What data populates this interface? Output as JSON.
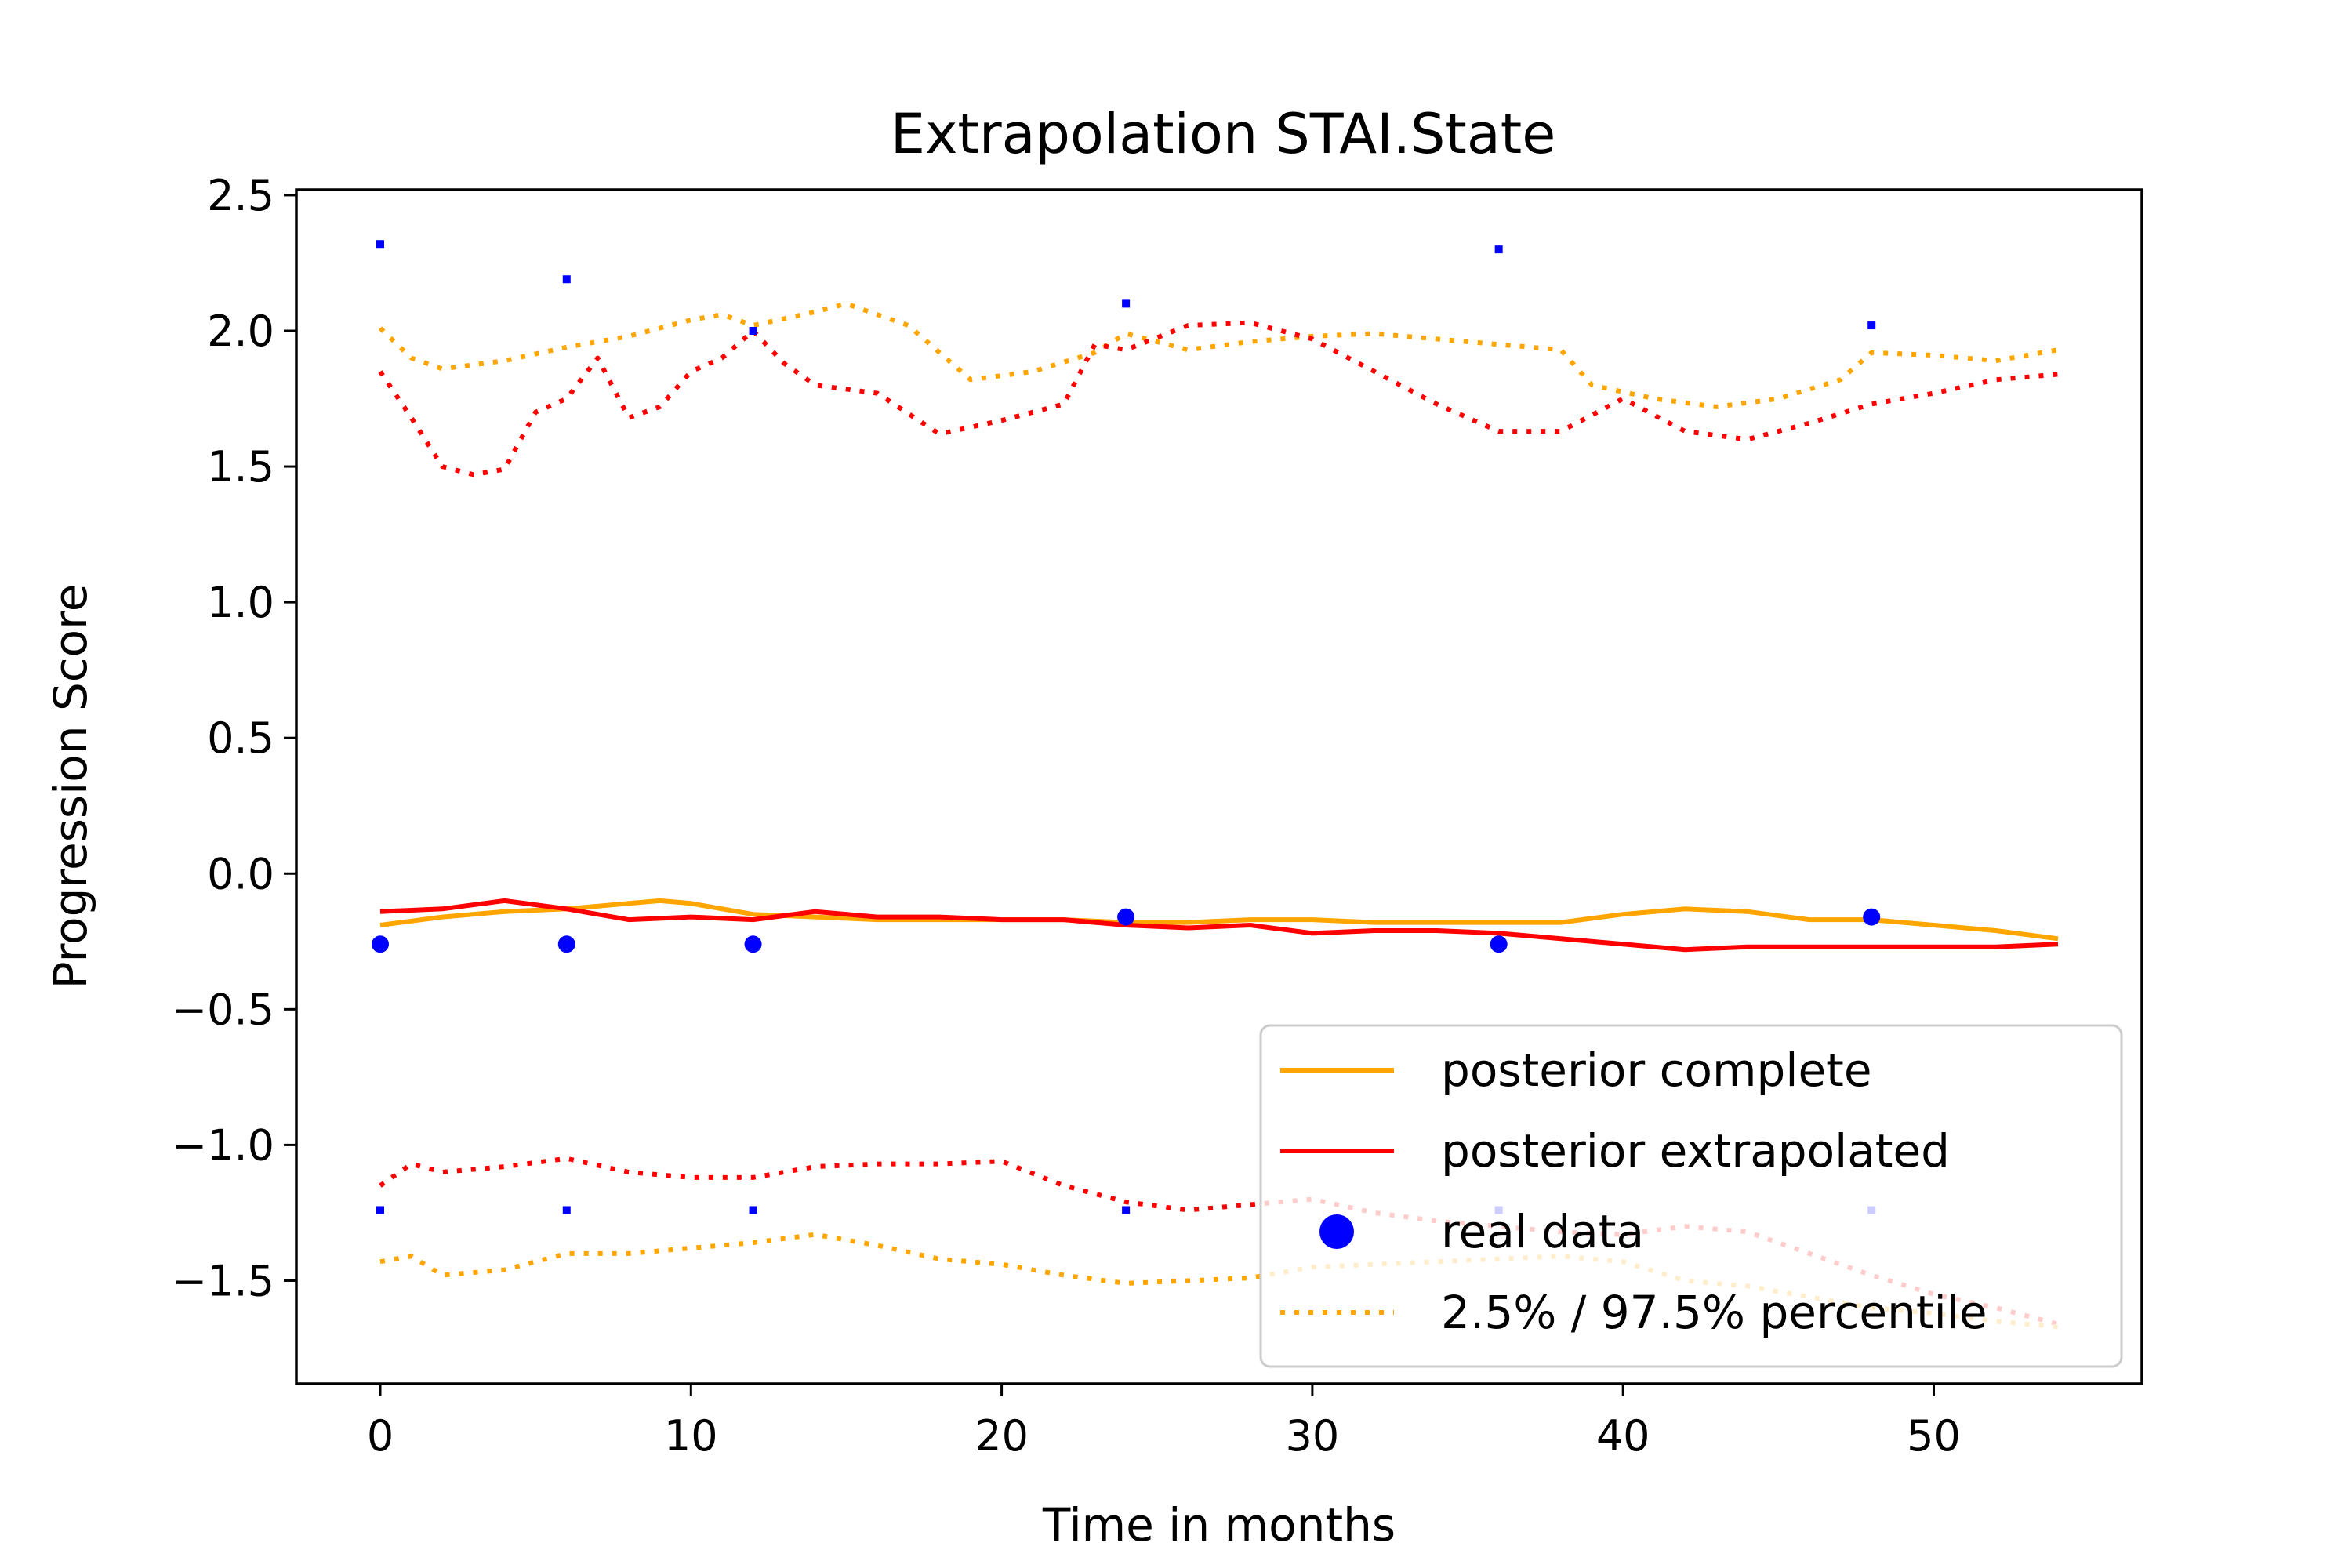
{
  "chart_data": {
    "type": "line",
    "title": "Extrapolation STAI.State",
    "xlabel": "Time in months",
    "ylabel": "Progression Score",
    "xlim": [
      -2.7,
      56.7
    ],
    "ylim": [
      -1.88,
      2.52
    ],
    "xticks": [
      0,
      10,
      20,
      30,
      40,
      50
    ],
    "yticks": [
      -1.5,
      -1.0,
      -0.5,
      0.0,
      0.5,
      1.0,
      1.5,
      2.0,
      2.5
    ],
    "ytick_labels": [
      "−1.5",
      "−1.0",
      "−0.5",
      "0.0",
      "0.5",
      "1.0",
      "1.5",
      "2.0",
      "2.5"
    ],
    "grid": false,
    "legend_position": "lower-right",
    "series": [
      {
        "name": "posterior complete",
        "style": "solid",
        "color": "#ffa500",
        "x": [
          0,
          2,
          4,
          6,
          8,
          9,
          10,
          12,
          14,
          16,
          18,
          20,
          22,
          24,
          26,
          28,
          30,
          32,
          34,
          36,
          38,
          40,
          42,
          44,
          46,
          48,
          50,
          52,
          54
        ],
        "y": [
          -0.19,
          -0.16,
          -0.14,
          -0.13,
          -0.11,
          -0.1,
          -0.11,
          -0.15,
          -0.16,
          -0.17,
          -0.17,
          -0.17,
          -0.17,
          -0.18,
          -0.18,
          -0.17,
          -0.17,
          -0.18,
          -0.18,
          -0.18,
          -0.18,
          -0.15,
          -0.13,
          -0.14,
          -0.17,
          -0.17,
          -0.19,
          -0.21,
          -0.24
        ]
      },
      {
        "name": "posterior extrapolated",
        "style": "solid",
        "color": "#ff0000",
        "x": [
          0,
          2,
          4,
          6,
          8,
          10,
          12,
          14,
          16,
          18,
          20,
          22,
          24,
          26,
          28,
          30,
          32,
          34,
          36,
          38,
          40,
          42,
          44,
          46,
          48,
          50,
          52,
          54
        ],
        "y": [
          -0.14,
          -0.13,
          -0.1,
          -0.13,
          -0.17,
          -0.16,
          -0.17,
          -0.14,
          -0.16,
          -0.16,
          -0.17,
          -0.17,
          -0.19,
          -0.2,
          -0.19,
          -0.22,
          -0.21,
          -0.21,
          -0.22,
          -0.24,
          -0.26,
          -0.28,
          -0.27,
          -0.27,
          -0.27,
          -0.27,
          -0.27,
          -0.26
        ]
      },
      {
        "name": "real data",
        "style": "marker",
        "color": "#0000ff",
        "x": [
          0,
          6,
          12,
          24,
          36,
          48
        ],
        "y": [
          -0.26,
          -0.26,
          -0.26,
          -0.16,
          -0.26,
          -0.16
        ]
      },
      {
        "name": "2.5% / 97.5% percentile",
        "style": "dotted",
        "color": "#ffa500",
        "x": [
          0,
          1,
          2,
          4,
          6,
          8,
          10,
          11,
          12,
          14,
          15,
          17,
          19,
          21,
          23,
          24,
          26,
          28,
          30,
          32,
          34,
          36,
          38,
          39,
          41,
          43,
          45,
          47,
          48,
          50,
          52,
          54
        ],
        "y": [
          2.01,
          1.9,
          1.86,
          1.89,
          1.94,
          1.98,
          2.04,
          2.06,
          2.02,
          2.07,
          2.1,
          2.02,
          1.82,
          1.85,
          1.92,
          1.99,
          1.93,
          1.96,
          1.98,
          1.99,
          1.97,
          1.95,
          1.93,
          1.8,
          1.75,
          1.72,
          1.75,
          1.82,
          1.92,
          1.91,
          1.89,
          1.93
        ]
      },
      {
        "name": "",
        "style": "dotted",
        "color": "#ff0000",
        "x": [
          0,
          1,
          2,
          3,
          4,
          5,
          6,
          7,
          8,
          9,
          10,
          11,
          12,
          13,
          14,
          16,
          18,
          20,
          22,
          23,
          24,
          26,
          28,
          30,
          32,
          34,
          36,
          38,
          40,
          42,
          44,
          46,
          48,
          50,
          52,
          54
        ],
        "y": [
          1.85,
          1.68,
          1.5,
          1.47,
          1.49,
          1.7,
          1.75,
          1.9,
          1.68,
          1.72,
          1.85,
          1.9,
          2.0,
          1.88,
          1.8,
          1.77,
          1.62,
          1.67,
          1.73,
          1.95,
          1.93,
          2.02,
          2.03,
          1.97,
          1.85,
          1.73,
          1.63,
          1.63,
          1.75,
          1.63,
          1.6,
          1.66,
          1.73,
          1.77,
          1.82,
          1.84
        ]
      },
      {
        "name": "",
        "style": "dotted",
        "color": "#ff0000",
        "x": [
          0,
          1,
          2,
          4,
          6,
          8,
          10,
          12,
          14,
          16,
          18,
          20,
          22,
          24,
          26,
          28,
          30,
          32,
          34,
          36,
          38,
          40,
          42,
          44,
          46,
          48,
          50,
          52,
          54
        ],
        "y": [
          -1.15,
          -1.07,
          -1.1,
          -1.08,
          -1.05,
          -1.1,
          -1.12,
          -1.12,
          -1.08,
          -1.07,
          -1.07,
          -1.06,
          -1.15,
          -1.21,
          -1.24,
          -1.22,
          -1.2,
          -1.25,
          -1.28,
          -1.3,
          -1.32,
          -1.33,
          -1.3,
          -1.32,
          -1.4,
          -1.48,
          -1.55,
          -1.6,
          -1.66
        ]
      },
      {
        "name": "",
        "style": "dotted",
        "color": "#ffa500",
        "x": [
          0,
          1,
          2,
          4,
          6,
          8,
          10,
          12,
          14,
          16,
          18,
          20,
          22,
          24,
          26,
          28,
          30,
          32,
          34,
          36,
          38,
          40,
          42,
          44,
          46,
          48,
          50,
          52,
          54
        ],
        "y": [
          -1.43,
          -1.41,
          -1.48,
          -1.46,
          -1.4,
          -1.4,
          -1.38,
          -1.36,
          -1.33,
          -1.37,
          -1.42,
          -1.44,
          -1.48,
          -1.51,
          -1.5,
          -1.49,
          -1.45,
          -1.44,
          -1.43,
          -1.42,
          -1.41,
          -1.43,
          -1.5,
          -1.52,
          -1.56,
          -1.6,
          -1.62,
          -1.65,
          -1.67
        ]
      },
      {
        "name": "",
        "style": "small-marker",
        "color": "#0000ff",
        "x": [
          0,
          6,
          12,
          24,
          36,
          48
        ],
        "y": [
          2.32,
          2.19,
          2.0,
          2.1,
          2.3,
          2.02
        ]
      },
      {
        "name": "",
        "style": "small-marker",
        "color": "#0000ff",
        "x": [
          0,
          6,
          12,
          24,
          36,
          48
        ],
        "y": [
          -1.24,
          -1.24,
          -1.24,
          -1.24,
          -1.24,
          -1.24
        ]
      }
    ],
    "legend": [
      {
        "label": "posterior complete",
        "style": "solid",
        "color": "#ffa500"
      },
      {
        "label": "posterior extrapolated",
        "style": "solid",
        "color": "#ff0000"
      },
      {
        "label": "real data",
        "style": "marker",
        "color": "#0000ff"
      },
      {
        "label": "2.5% / 97.5% percentile",
        "style": "dotted",
        "color": "#ffa500"
      }
    ]
  }
}
